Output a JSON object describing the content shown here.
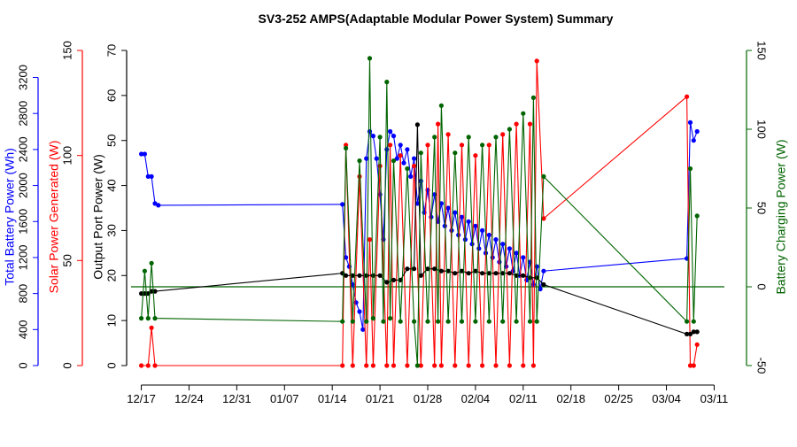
{
  "chart_data": {
    "type": "line",
    "title": "SV3-252 AMPS(Adaptable Modular Power System) Summary",
    "xlabel": "",
    "x_ticks": [
      "12/17",
      "12/24",
      "12/31",
      "01/07",
      "01/14",
      "01/21",
      "01/28",
      "02/04",
      "02/11",
      "02/18",
      "02/25",
      "03/04",
      "03/11"
    ],
    "x_tick_days": [
      0,
      7,
      14,
      21,
      28,
      35,
      42,
      49,
      56,
      63,
      70,
      77,
      84
    ],
    "xlim": [
      -1.5,
      85.5
    ],
    "axes": {
      "battery_wh": {
        "label": "Total Battery Power (Wh)",
        "color": "#0000ff",
        "ticks": [
          0,
          400,
          800,
          1200,
          1600,
          2000,
          2400,
          2800,
          3200
        ],
        "tick_labels": [
          "0",
          "400",
          "800",
          "1200",
          "1600",
          "2000",
          "2400",
          "2800",
          "3200"
        ],
        "ylim": [
          0,
          3500
        ]
      },
      "solar_w": {
        "label": "Solar Power Generated (W)",
        "color": "#ff0000",
        "ticks": [
          0,
          50,
          100,
          150
        ],
        "tick_labels": [
          "0",
          "50",
          "100",
          "150"
        ],
        "ylim": [
          0,
          150
        ]
      },
      "output_w": {
        "label": "Output Port Power (W)",
        "color": "#000000",
        "ticks": [
          0,
          10,
          20,
          30,
          40,
          50,
          60,
          70
        ],
        "tick_labels": [
          "0",
          "10",
          "20",
          "30",
          "40",
          "50",
          "60",
          "70"
        ],
        "ylim": [
          0,
          70
        ]
      },
      "charging_w": {
        "label": "Battery Charging Power (W)",
        "color": "#006400",
        "ticks": [
          -50,
          0,
          50,
          100,
          150
        ],
        "tick_labels": [
          "-50",
          "0",
          "50",
          "100",
          "150"
        ],
        "ylim": [
          -50,
          150
        ]
      }
    },
    "series": [
      {
        "name": "Total Battery Power (Wh)",
        "axis": "battery_wh",
        "color": "#0000ff",
        "x": [
          0,
          0.5,
          1,
          1.5,
          2,
          2.5,
          29.5,
          30,
          30.5,
          31,
          31.5,
          32,
          32.5,
          33,
          33.5,
          34,
          34.5,
          35,
          35.5,
          36,
          36.5,
          37,
          37.5,
          38,
          38.5,
          39,
          39.5,
          40,
          40.5,
          41,
          41.5,
          42,
          42.5,
          43,
          43.5,
          44,
          44.5,
          45,
          45.5,
          46,
          46.5,
          47,
          47.5,
          48,
          48.5,
          49,
          49.5,
          50,
          50.5,
          51,
          51.5,
          52,
          52.5,
          53,
          53.5,
          54,
          54.5,
          55,
          55.5,
          56,
          56.5,
          57,
          57.5,
          58,
          58.5,
          59,
          80,
          80.5,
          81,
          81.5
        ],
        "y": [
          2350,
          2350,
          2100,
          2100,
          1800,
          1780,
          1790,
          1200,
          1100,
          900,
          700,
          600,
          400,
          2300,
          2600,
          2550,
          2300,
          1900,
          1400,
          2400,
          2600,
          2550,
          2300,
          2450,
          2250,
          2400,
          2100,
          2300,
          1800,
          2050,
          1700,
          1950,
          1650,
          1900,
          1600,
          1800,
          1550,
          1750,
          1500,
          1700,
          1450,
          1650,
          1400,
          1600,
          1350,
          1550,
          1300,
          1500,
          1250,
          1450,
          1200,
          1400,
          1150,
          1350,
          1100,
          1300,
          1050,
          1250,
          1000,
          1200,
          950,
          1150,
          900,
          1100,
          850,
          1050,
          1190,
          2700,
          2500,
          2600
        ]
      },
      {
        "name": "Solar Power Generated (W)",
        "axis": "solar_w",
        "color": "#ff0000",
        "x": [
          0,
          1,
          1.5,
          2,
          29.5,
          30,
          31,
          32,
          33,
          33.5,
          34,
          35,
          36,
          36.5,
          37,
          38,
          39,
          40,
          41,
          42,
          43,
          43.5,
          44,
          45,
          46,
          47,
          48,
          49,
          50,
          51,
          52,
          53,
          54,
          55,
          56,
          57,
          57.5,
          58,
          59,
          80,
          80.5,
          81,
          81.5
        ],
        "y": [
          0,
          0,
          18,
          0,
          0,
          105,
          0,
          90,
          0,
          60,
          0,
          95,
          0,
          105,
          0,
          100,
          0,
          95,
          0,
          105,
          0,
          115,
          0,
          110,
          0,
          105,
          0,
          100,
          0,
          105,
          0,
          110,
          0,
          115,
          0,
          115,
          0,
          145,
          70,
          128,
          0,
          0,
          10
        ]
      },
      {
        "name": "Output Port Power (W)",
        "axis": "output_w",
        "color": "#000000",
        "x": [
          0,
          0.5,
          1,
          1.5,
          2,
          29.5,
          30,
          31,
          32,
          33,
          34,
          35,
          36,
          37,
          38,
          39,
          40,
          40.5,
          41,
          42,
          43,
          44,
          45,
          46,
          47,
          48,
          49,
          50,
          51,
          52,
          53,
          54,
          55,
          56,
          57,
          58,
          59,
          80,
          80.5,
          81,
          81.5
        ],
        "y": [
          16,
          16,
          16,
          16.5,
          16.5,
          20.5,
          20,
          20,
          20,
          20,
          20,
          20,
          18.5,
          19,
          19,
          21.5,
          21.5,
          53.5,
          20,
          21.5,
          21.5,
          21,
          21,
          20.5,
          21,
          20.5,
          21,
          20.5,
          20.5,
          20.5,
          20.5,
          20.5,
          20,
          20,
          19.5,
          19.5,
          18,
          7,
          7,
          7.5,
          7.5
        ]
      },
      {
        "name": "Battery Charging Power (W)",
        "axis": "charging_w",
        "color": "#006400",
        "x": [
          0,
          0.5,
          1,
          1.5,
          2,
          29.5,
          30,
          31,
          32,
          33,
          33.5,
          34,
          35,
          35.5,
          36,
          36.5,
          37,
          38,
          39,
          40,
          40.5,
          41,
          42,
          43,
          43.5,
          44,
          45,
          46,
          47,
          48,
          49,
          50,
          51,
          52,
          53,
          54,
          55,
          56,
          57,
          57.5,
          58,
          59,
          80,
          80.5,
          81,
          81.5
        ],
        "y": [
          -20,
          10,
          -20,
          15,
          -20,
          -22,
          88,
          -22,
          80,
          -22,
          145,
          -20,
          95,
          -22,
          130,
          -20,
          80,
          -22,
          75,
          -22,
          -50,
          85,
          -22,
          95,
          -22,
          115,
          -22,
          85,
          -22,
          95,
          -22,
          90,
          -22,
          95,
          -22,
          100,
          -22,
          110,
          -22,
          120,
          -22,
          70,
          -22,
          75,
          -22,
          45
        ]
      }
    ]
  }
}
